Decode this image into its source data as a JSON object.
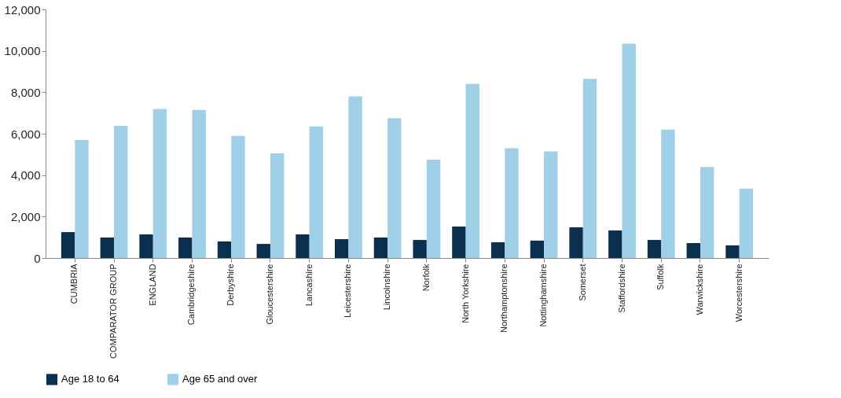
{
  "chart_data": {
    "type": "bar",
    "categories": [
      "CUMBRIA",
      "COMPARATOR GROUP",
      "ENGLAND",
      "Cambridgeshire",
      "Derbyshire",
      "Gloucestershire",
      "Lancashire",
      "Leicestershire",
      "Lincolnshire",
      "Norfolk",
      "North Yorkshire",
      "Northamptonshire",
      "Nottinghamshire",
      "Somerset",
      "Staffordshire",
      "Suffolk",
      "Warwickshire",
      "Worcestershire"
    ],
    "series": [
      {
        "name": "Age 18 to 64",
        "color": "#0b2f4e",
        "values": [
          1250,
          990,
          1140,
          990,
          800,
          680,
          1140,
          910,
          990,
          870,
          1520,
          760,
          840,
          1480,
          1330,
          870,
          720,
          610
        ]
      },
      {
        "name": "Age 65 and over",
        "color": "#9fd0e8",
        "values": [
          5700,
          6380,
          7200,
          7150,
          5900,
          5050,
          6350,
          7800,
          6750,
          4750,
          8400,
          5300,
          5150,
          8650,
          10350,
          6200,
          4400,
          3350
        ]
      }
    ],
    "ylim": [
      0,
      12000
    ],
    "yticks": [
      0,
      {
        "value": 2000,
        "label": "2,000"
      },
      {
        "value": 4000,
        "label": "4,000"
      },
      {
        "value": 6000,
        "label": "6,000"
      },
      {
        "value": 8000,
        "label": "8,000"
      },
      {
        "value": 10000,
        "label": "10,000"
      },
      {
        "value": 12000,
        "label": "12,000"
      }
    ],
    "grid": false,
    "legend": "bottom"
  }
}
